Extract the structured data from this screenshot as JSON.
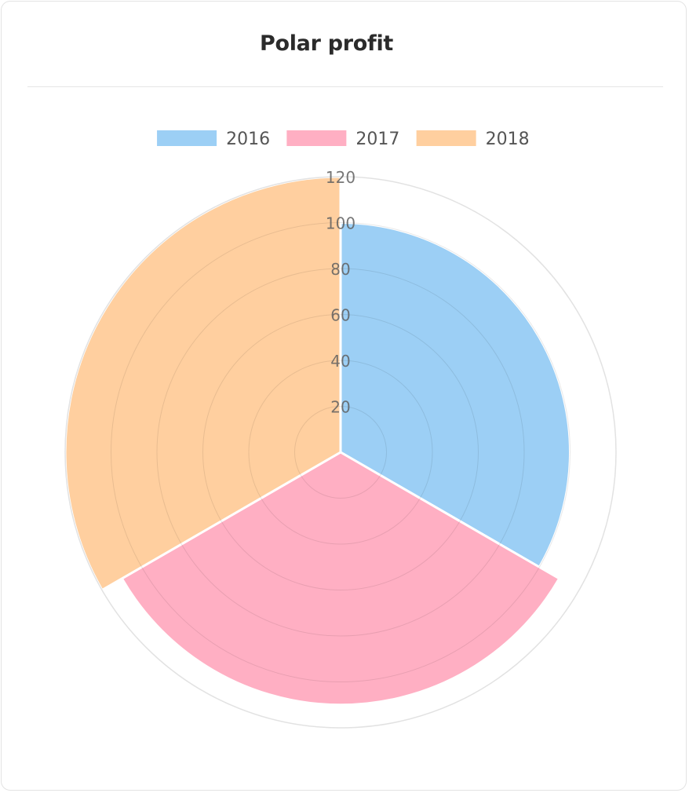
{
  "card": {
    "title": "Polar profit"
  },
  "chart_data": {
    "type": "polarArea",
    "title": "Polar profit",
    "categories": [
      "2016",
      "2017",
      "2018"
    ],
    "values": [
      100,
      110,
      120
    ],
    "colors": [
      "#9ccff5",
      "#ffafc3",
      "#ffcf9f"
    ],
    "axis": {
      "min": 0,
      "max": 120,
      "ticks": [
        "20",
        "40",
        "60",
        "80",
        "100",
        "120"
      ]
    },
    "legend_position": "top"
  }
}
